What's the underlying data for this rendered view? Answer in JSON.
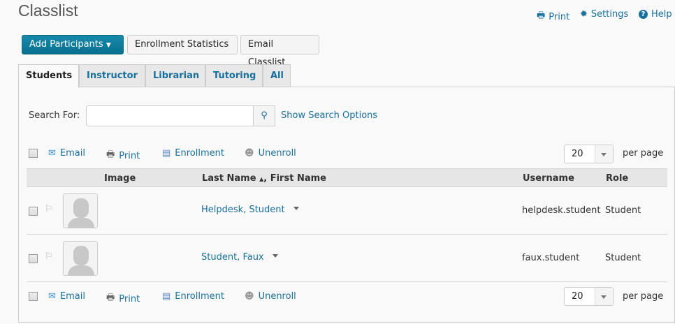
{
  "title": "Classlist",
  "top_links": {
    "print": "Print",
    "settings": "Settings",
    "help": "Help"
  },
  "buttons": {
    "add": "Add Participants",
    "stats": "Enrollment Statistics",
    "email": "Email Classlist"
  },
  "tabs": [
    "Students",
    "Instructor",
    "Librarian",
    "Tutoring",
    "All"
  ],
  "search": {
    "label": "Search For:",
    "value": "",
    "options": "Show Search Options"
  },
  "actions": {
    "email": "Email",
    "print": "Print",
    "enrollment": "Enrollment",
    "unenroll": "Unenroll"
  },
  "per_page": {
    "value": "20",
    "label": "per page"
  },
  "columns": {
    "image": "Image",
    "name": "Last Name",
    "sort_icon": "▲",
    "name2": ", First Name",
    "username": "Username",
    "role": "Role"
  },
  "rows": [
    {
      "name": "Helpdesk, Student",
      "username": "helpdesk.student",
      "role": "Student"
    },
    {
      "name": "Student, Faux",
      "username": "faux.student",
      "role": "Student"
    }
  ]
}
